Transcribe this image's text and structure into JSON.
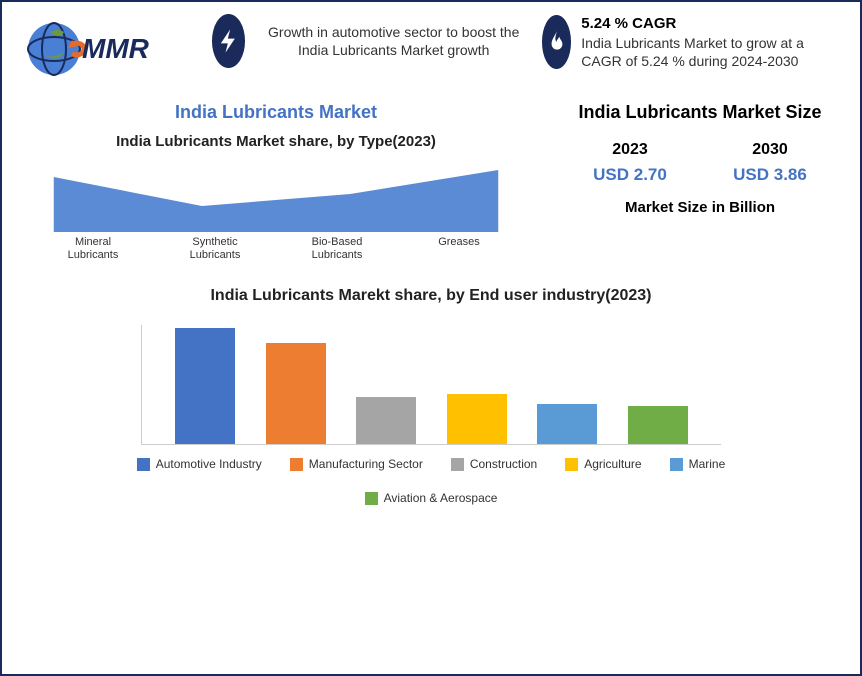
{
  "logo": {
    "text": "MMR"
  },
  "callout_growth": {
    "text": "Growth in automotive sector to boost the India Lubricants Market growth"
  },
  "callout_cagr": {
    "headline": "5.24 % CAGR",
    "text": "India Lubricants Market to grow at a CAGR of 5.24 % during 2024-2030"
  },
  "area_chart": {
    "main_title": "India Lubricants Market",
    "subtitle": "India Lubricants Market share, by Type(2023)",
    "categories": [
      "Mineral Lubricants",
      "Synthetic Lubricants",
      "Bio-Based Lubricants",
      "Greases"
    ],
    "values": [
      55,
      26,
      38,
      62
    ],
    "fill_color": "#5b8bd5",
    "ymax": 70
  },
  "market_size": {
    "title": "India Lubricants Market Size",
    "year1": "2023",
    "year2": "2030",
    "val1": "USD 2.70",
    "val2": "USD 3.86",
    "caption": "Market Size in Billion",
    "value_color": "#4472c4"
  },
  "bar_chart": {
    "title": "India Lubricants Marekt share, by End user industry(2023)",
    "series": [
      {
        "label": "Automotive Industry",
        "value": 98,
        "color": "#4472c4"
      },
      {
        "label": "Manufacturing Sector",
        "value": 85,
        "color": "#ed7d31"
      },
      {
        "label": "Construction",
        "value": 40,
        "color": "#a5a5a5"
      },
      {
        "label": "Agriculture",
        "value": 42,
        "color": "#ffc000"
      },
      {
        "label": "Marine",
        "value": 34,
        "color": "#5b9bd5"
      },
      {
        "label": "Aviation & Aerospace",
        "value": 32,
        "color": "#70ad47"
      }
    ],
    "ymax": 100
  }
}
